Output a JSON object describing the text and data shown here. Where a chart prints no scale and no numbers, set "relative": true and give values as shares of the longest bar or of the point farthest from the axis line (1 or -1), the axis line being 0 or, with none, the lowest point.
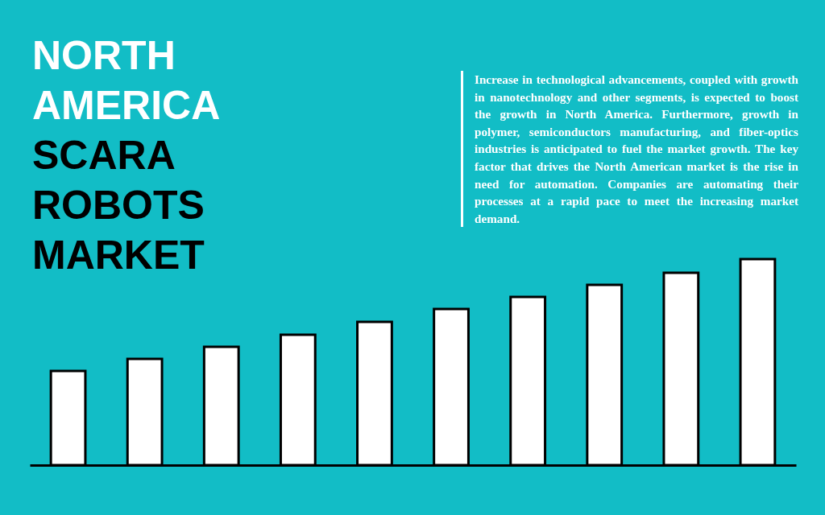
{
  "chart_data": {
    "type": "bar",
    "title": "NORTH AMERICA SCARA ROBOTS MARKET",
    "relative": true,
    "categories": [
      null,
      null,
      null,
      null,
      null,
      null,
      null,
      null,
      null,
      null
    ],
    "values": [
      0.457,
      0.516,
      0.574,
      0.633,
      0.695,
      0.758,
      0.816,
      0.875,
      0.934,
      1
    ],
    "color": "#ffffff",
    "annotations": [
      "Increase in technological advancements, coupled with growth in nanotechnology and other segments, is expected to boost the growth in North America. Furthermore, growth in polymer, semiconductors manufacturing, and fiber-optics industries is anticipated to fuel the market growth. The key factor that drives the North American market is the rise in need for automation. Companies are automating their processes at a rapid pace to meet the increasing market demand."
    ]
  }
}
